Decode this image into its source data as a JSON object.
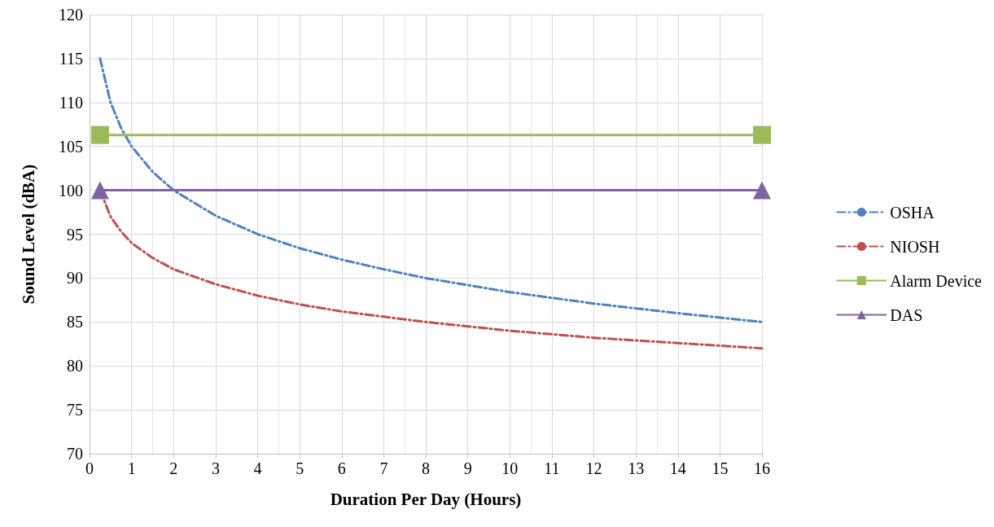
{
  "chart_data": {
    "type": "line",
    "xlabel": "Duration Per Day (Hours)",
    "ylabel": "Sound Level (dBA)",
    "xlim": [
      0,
      16
    ],
    "xticks": [
      0,
      1,
      2,
      3,
      4,
      5,
      6,
      7,
      8,
      9,
      10,
      11,
      12,
      13,
      14,
      15,
      16
    ],
    "ylim": [
      70,
      120
    ],
    "yticks": [
      70,
      75,
      80,
      85,
      90,
      95,
      100,
      105,
      110,
      115,
      120
    ],
    "grid": true,
    "legend": "right",
    "series": [
      {
        "name": "OSHA",
        "color": "#4f81bd",
        "line_style": "dashed",
        "marker": "none",
        "x": [
          0.25,
          0.5,
          0.75,
          1,
          1.5,
          2,
          3,
          4,
          5,
          6,
          7,
          8,
          10,
          12,
          14,
          16
        ],
        "values": [
          115,
          110,
          107.1,
          105,
          102.1,
          100,
          97.1,
          95,
          93.4,
          92.1,
          91,
          90,
          88.4,
          87.1,
          86,
          85
        ]
      },
      {
        "name": "NIOSH",
        "color": "#c0504d",
        "line_style": "dashed",
        "marker": "none",
        "x": [
          0.25,
          0.5,
          0.75,
          1,
          1.5,
          2,
          3,
          4,
          5,
          6,
          7,
          8,
          10,
          12,
          14,
          16
        ],
        "values": [
          100,
          97,
          95.3,
          94,
          92.3,
          91,
          89.3,
          88,
          87,
          86.2,
          85.6,
          85,
          84,
          83.2,
          82.6,
          82
        ]
      },
      {
        "name": "Alarm Device",
        "color": "#9bbb59",
        "line_style": "solid",
        "marker": "square",
        "x": [
          0.25,
          16
        ],
        "values": [
          106.3,
          106.3
        ]
      },
      {
        "name": "DAS",
        "color": "#8064a2",
        "line_style": "solid",
        "marker": "triangle",
        "x": [
          0.25,
          16
        ],
        "values": [
          100,
          100
        ]
      }
    ]
  }
}
